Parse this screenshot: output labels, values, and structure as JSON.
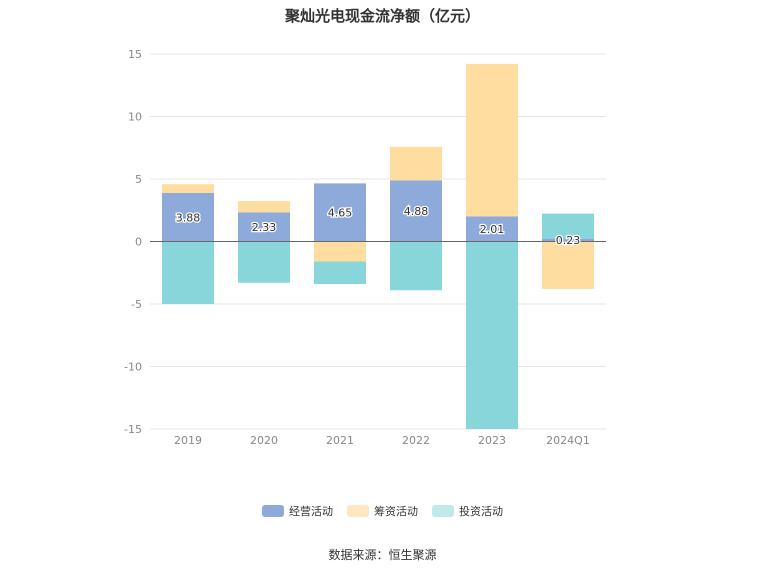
{
  "title": "聚灿光电现金流净额（亿元）",
  "source": "数据来源：恒生聚源",
  "colors": {
    "operating": "#8eaadb",
    "financing": "#ffdca0",
    "investing": "#88d6d9"
  },
  "chart_data": {
    "type": "bar",
    "stacked": true,
    "title": "聚灿光电现金流净额（亿元）",
    "categories": [
      "2019",
      "2020",
      "2021",
      "2022",
      "2023",
      "2024Q1"
    ],
    "ylim": [
      -15,
      15
    ],
    "yticks": [
      15,
      10,
      5,
      0,
      -5,
      -10,
      -15
    ],
    "grid": true,
    "legend_position": "bottom",
    "series": [
      {
        "name": "经营活动",
        "values": [
          3.88,
          2.33,
          4.65,
          4.88,
          2.01,
          0.23
        ],
        "color": "#8eaadb",
        "show_labels": true
      },
      {
        "name": "筹资活动",
        "values": [
          0.7,
          0.9,
          -1.6,
          2.7,
          12.2,
          -3.8
        ],
        "color": "#ffdca0",
        "show_labels": false
      },
      {
        "name": "投资活动",
        "values": [
          -5.0,
          -3.3,
          -1.8,
          -3.9,
          -15.0,
          2.0
        ],
        "color": "#88d6d9",
        "show_labels": false
      }
    ],
    "data_labels": [
      "3.88",
      "2.33",
      "4.65",
      "4.88",
      "2.01",
      "0.23"
    ]
  }
}
